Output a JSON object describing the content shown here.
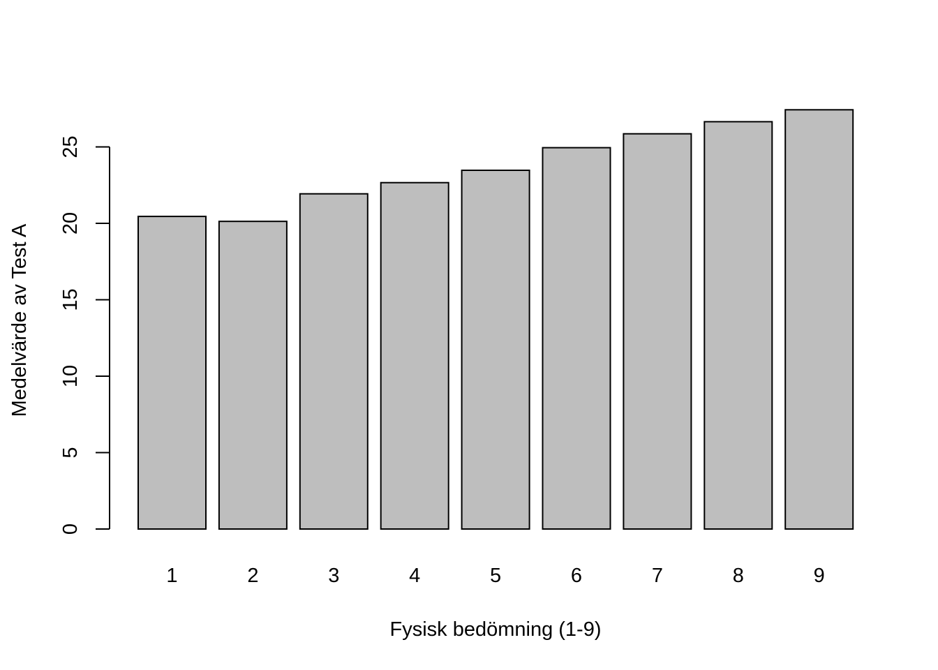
{
  "chart_data": {
    "type": "bar",
    "categories": [
      "1",
      "2",
      "3",
      "4",
      "5",
      "6",
      "7",
      "8",
      "9"
    ],
    "values": [
      20.45,
      20.13,
      21.93,
      22.66,
      23.47,
      24.95,
      25.86,
      26.65,
      27.43
    ],
    "xlabel": "Fysisk bedömning (1-9)",
    "ylabel": "Medelvärde av Test A",
    "yticks": [
      0,
      5,
      10,
      15,
      20,
      25
    ],
    "ylim": [
      0,
      27.43
    ],
    "grid": false,
    "legend": "none",
    "colors": {
      "bar_fill": "#bebebe",
      "bar_stroke": "#000000"
    }
  }
}
